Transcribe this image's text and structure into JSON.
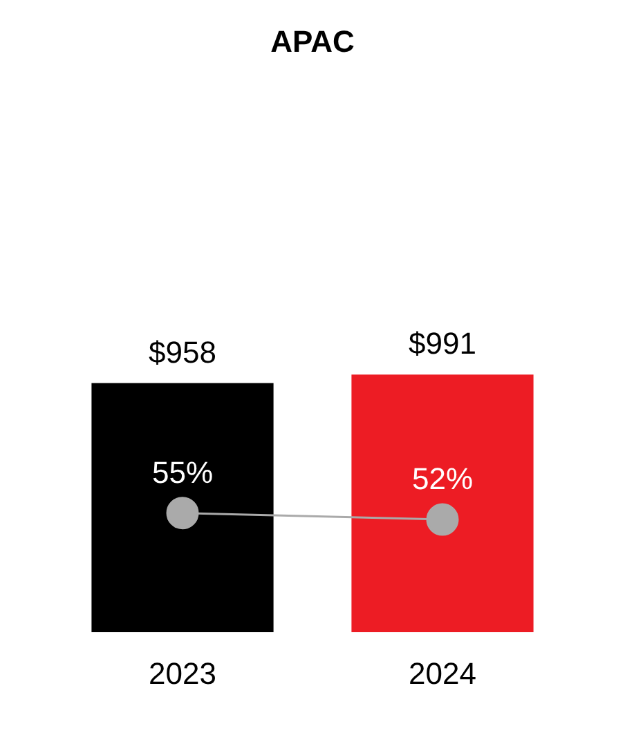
{
  "chart_data": {
    "type": "bar",
    "title": "APAC",
    "categories": [
      "2023",
      "2024"
    ],
    "series": [
      {
        "colors": [
          "#000000",
          "#ed1c24"
        ],
        "values": [
          958,
          991
        ],
        "value_labels": [
          "$958",
          "$991"
        ]
      },
      {
        "type": "line",
        "axis": "y2",
        "color": "#aaaaaa",
        "marker": "circle",
        "values": [
          55,
          52
        ],
        "value_labels": [
          "55%",
          "52%"
        ]
      }
    ],
    "tick_labels": "x",
    "grid": false,
    "legend": false
  }
}
